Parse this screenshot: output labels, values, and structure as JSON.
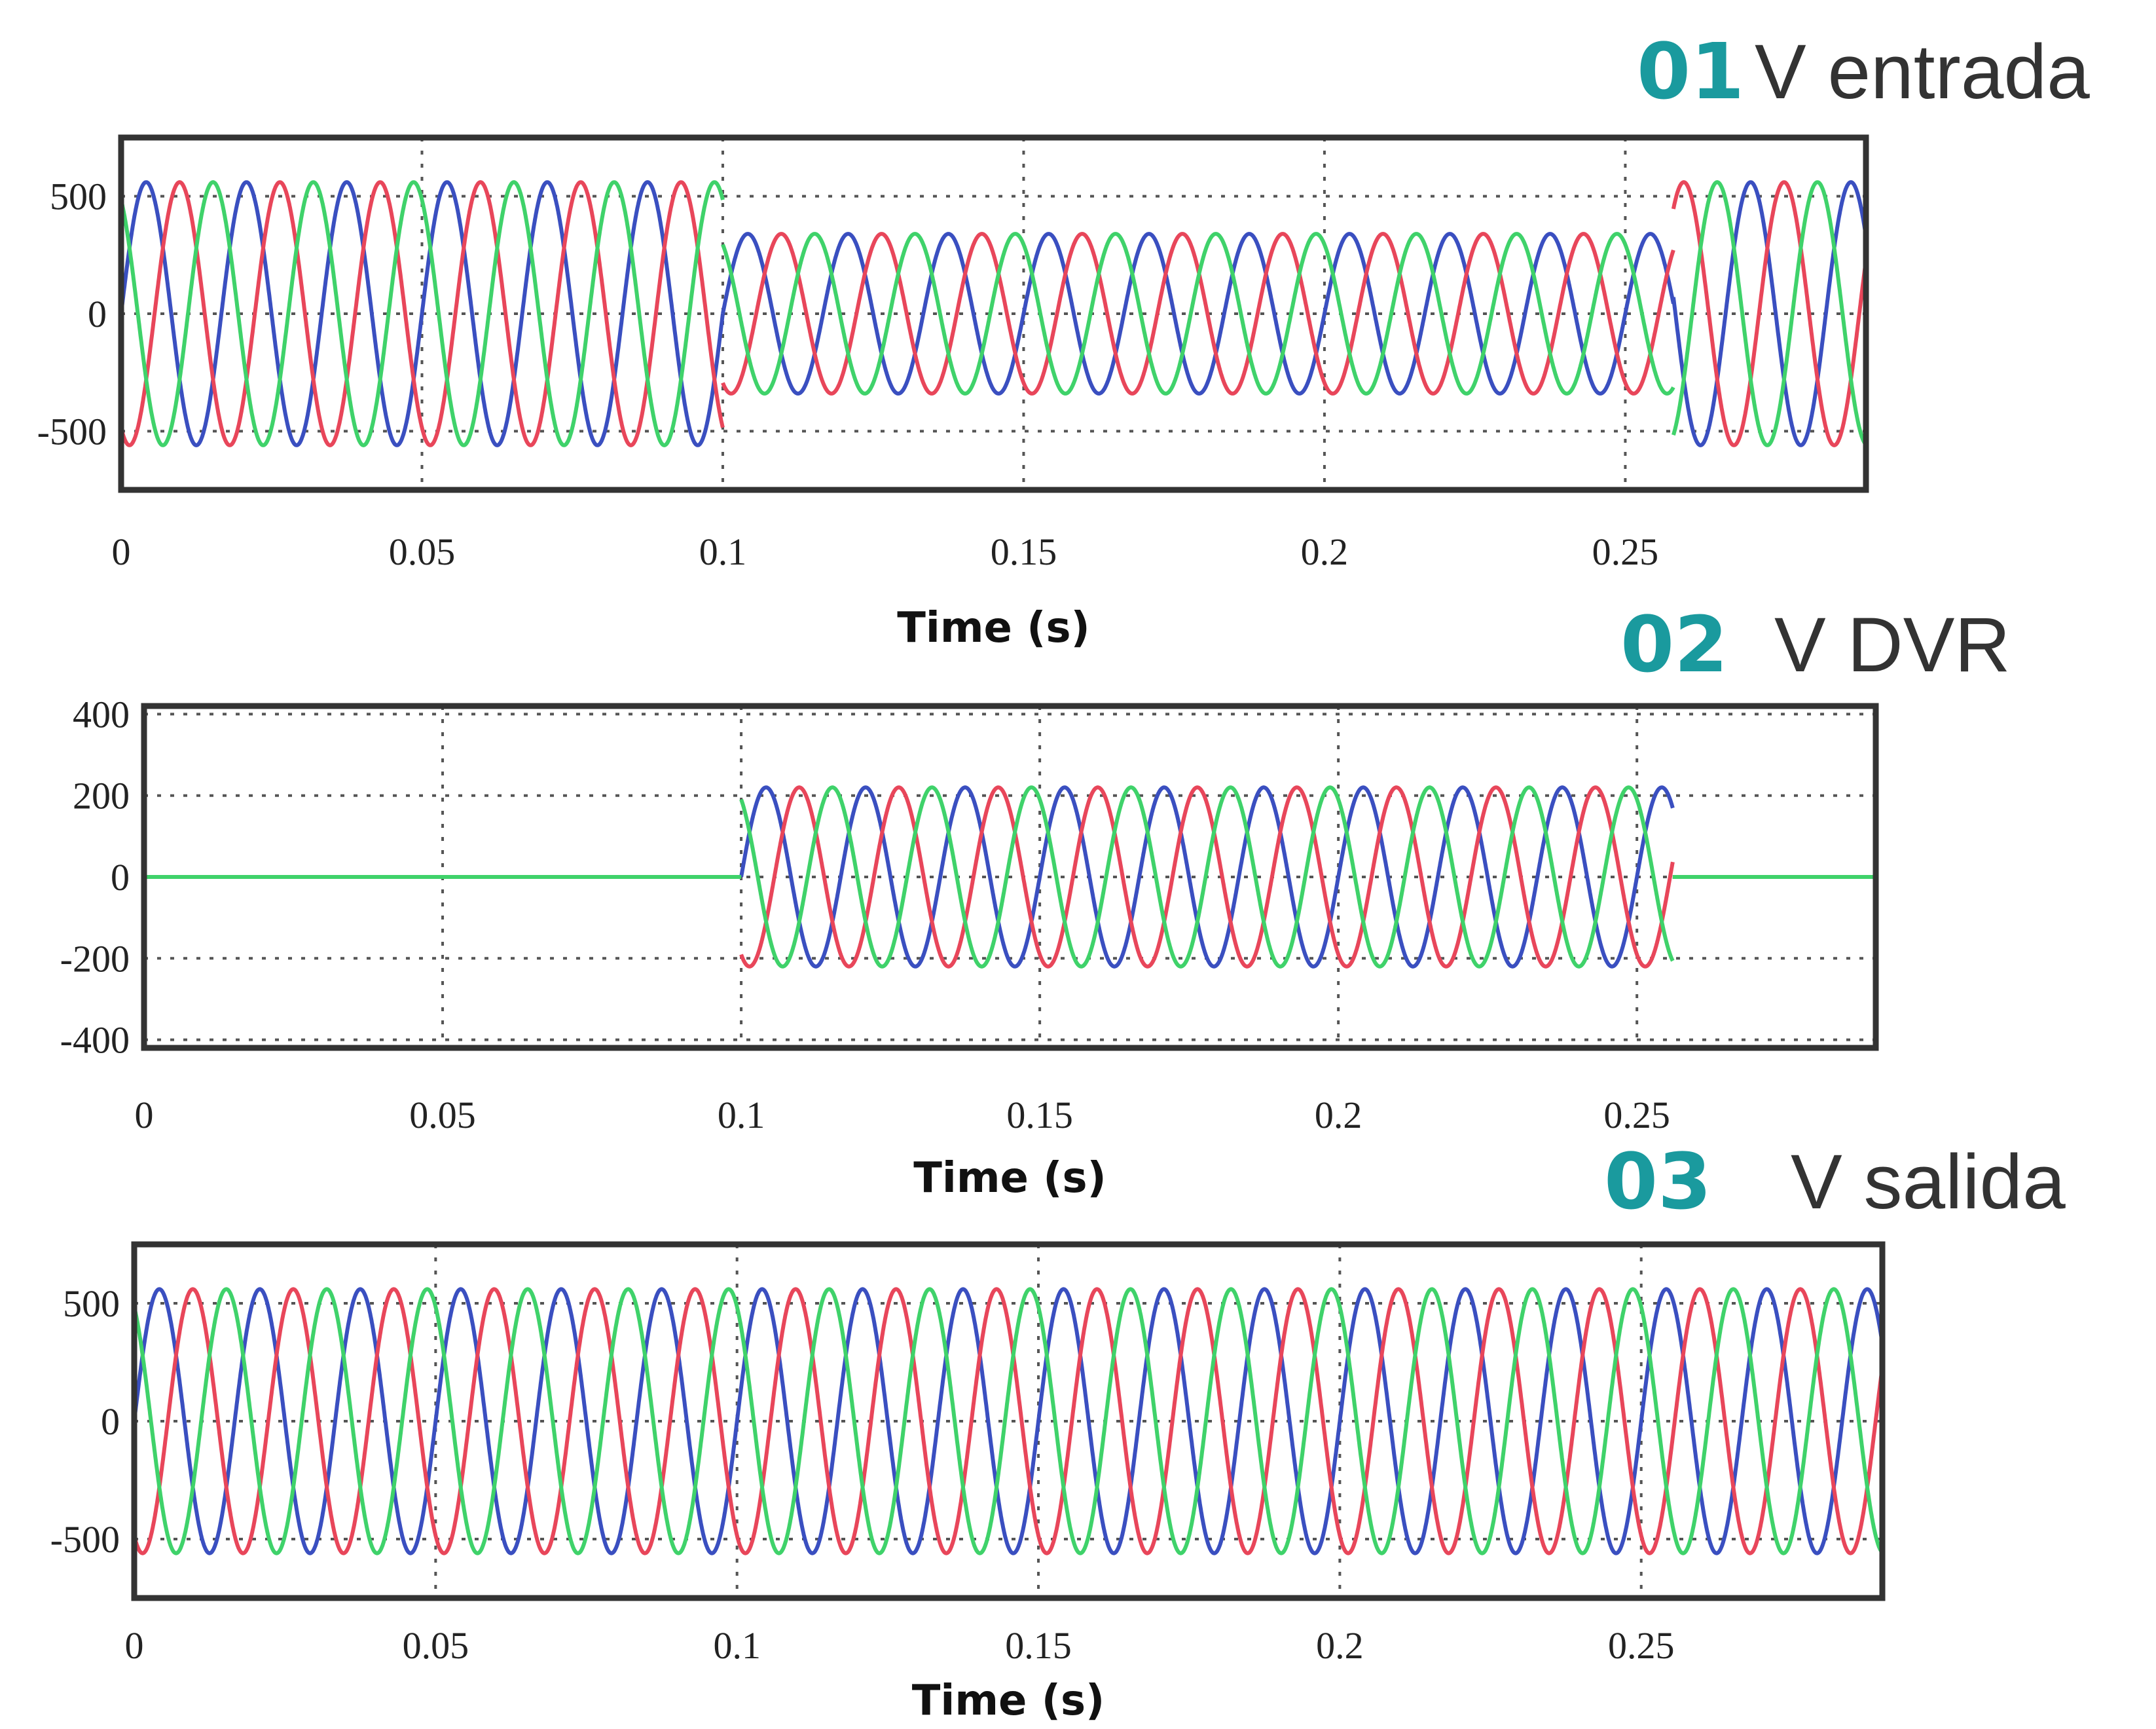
{
  "colors": {
    "accent": "#1a9a9e",
    "phase_a": "#e8465a",
    "phase_b": "#3a4fc0",
    "phase_c": "#3fd26a"
  },
  "chart_data": [
    {
      "type": "line",
      "badge": "01",
      "title": "V entrada",
      "xlabel": "Time (s)",
      "ylabel": "",
      "xlim": [
        0,
        0.29
      ],
      "ylim": [
        -750,
        750
      ],
      "xticks": [
        0,
        0.05,
        0.1,
        0.15,
        0.2,
        0.25
      ],
      "xtick_labels": [
        "0",
        "0.05",
        "0.1",
        "0.15",
        "0.2",
        "0.25"
      ],
      "yticks": [
        500,
        0,
        -500
      ],
      "ytick_labels": [
        "500",
        "0",
        "-500"
      ],
      "grid": true,
      "signal": "three-phase sine, 60 Hz",
      "series": [
        {
          "phase_deg": 0,
          "segments": [
            {
              "t": [
                0,
                0.1
              ],
              "amplitude": 560
            },
            {
              "t": [
                0.1,
                0.258
              ],
              "amplitude": 340
            },
            {
              "t": [
                0.258,
                0.29
              ],
              "amplitude": 560
            }
          ]
        },
        {
          "phase_deg": -120,
          "segments": [
            {
              "t": [
                0,
                0.1
              ],
              "amplitude": 560
            },
            {
              "t": [
                0.1,
                0.258
              ],
              "amplitude": 340
            },
            {
              "t": [
                0.258,
                0.29
              ],
              "amplitude": 560
            }
          ]
        },
        {
          "phase_deg": 120,
          "segments": [
            {
              "t": [
                0,
                0.1
              ],
              "amplitude": 560
            },
            {
              "t": [
                0.1,
                0.258
              ],
              "amplitude": 340
            },
            {
              "t": [
                0.258,
                0.29
              ],
              "amplitude": 560
            }
          ]
        }
      ]
    },
    {
      "type": "line",
      "badge": "02",
      "title": "V DVR",
      "xlabel": "Time (s)",
      "ylabel": "",
      "xlim": [
        0,
        0.29
      ],
      "ylim": [
        -420,
        420
      ],
      "xticks": [
        0,
        0.05,
        0.1,
        0.15,
        0.2,
        0.25
      ],
      "xtick_labels": [
        "0",
        "0.05",
        "0.1",
        "0.15",
        "0.2",
        "0.25"
      ],
      "yticks": [
        400,
        200,
        0,
        -200,
        -400
      ],
      "ytick_labels": [
        "400",
        "200",
        "0",
        "-200",
        "-400"
      ],
      "grid": true,
      "signal": "three-phase sine, 60 Hz",
      "series": [
        {
          "phase_deg": 0,
          "segments": [
            {
              "t": [
                0,
                0.1
              ],
              "amplitude": 0
            },
            {
              "t": [
                0.1,
                0.256
              ],
              "amplitude": 220
            },
            {
              "t": [
                0.256,
                0.29
              ],
              "amplitude": 0
            }
          ]
        },
        {
          "phase_deg": -120,
          "segments": [
            {
              "t": [
                0,
                0.1
              ],
              "amplitude": 0
            },
            {
              "t": [
                0.1,
                0.256
              ],
              "amplitude": 220
            },
            {
              "t": [
                0.256,
                0.29
              ],
              "amplitude": 0
            }
          ]
        },
        {
          "phase_deg": 120,
          "segments": [
            {
              "t": [
                0,
                0.1
              ],
              "amplitude": 0
            },
            {
              "t": [
                0.1,
                0.256
              ],
              "amplitude": 220
            },
            {
              "t": [
                0.256,
                0.29
              ],
              "amplitude": 0
            }
          ]
        }
      ]
    },
    {
      "type": "line",
      "badge": "03",
      "title": "V salida",
      "xlabel": "Time (s)",
      "ylabel": "",
      "xlim": [
        0,
        0.29
      ],
      "ylim": [
        -750,
        750
      ],
      "xticks": [
        0,
        0.05,
        0.1,
        0.15,
        0.2,
        0.25
      ],
      "xtick_labels": [
        "0",
        "0.05",
        "0.1",
        "0.15",
        "0.2",
        "0.25"
      ],
      "yticks": [
        500,
        0,
        -500
      ],
      "ytick_labels": [
        "500",
        "0",
        "-500"
      ],
      "grid": true,
      "signal": "three-phase sine, 60 Hz",
      "series": [
        {
          "phase_deg": 0,
          "segments": [
            {
              "t": [
                0,
                0.29
              ],
              "amplitude": 560
            }
          ]
        },
        {
          "phase_deg": -120,
          "segments": [
            {
              "t": [
                0,
                0.29
              ],
              "amplitude": 560
            }
          ]
        },
        {
          "phase_deg": 120,
          "segments": [
            {
              "t": [
                0,
                0.29
              ],
              "amplitude": 560
            }
          ]
        }
      ]
    }
  ]
}
